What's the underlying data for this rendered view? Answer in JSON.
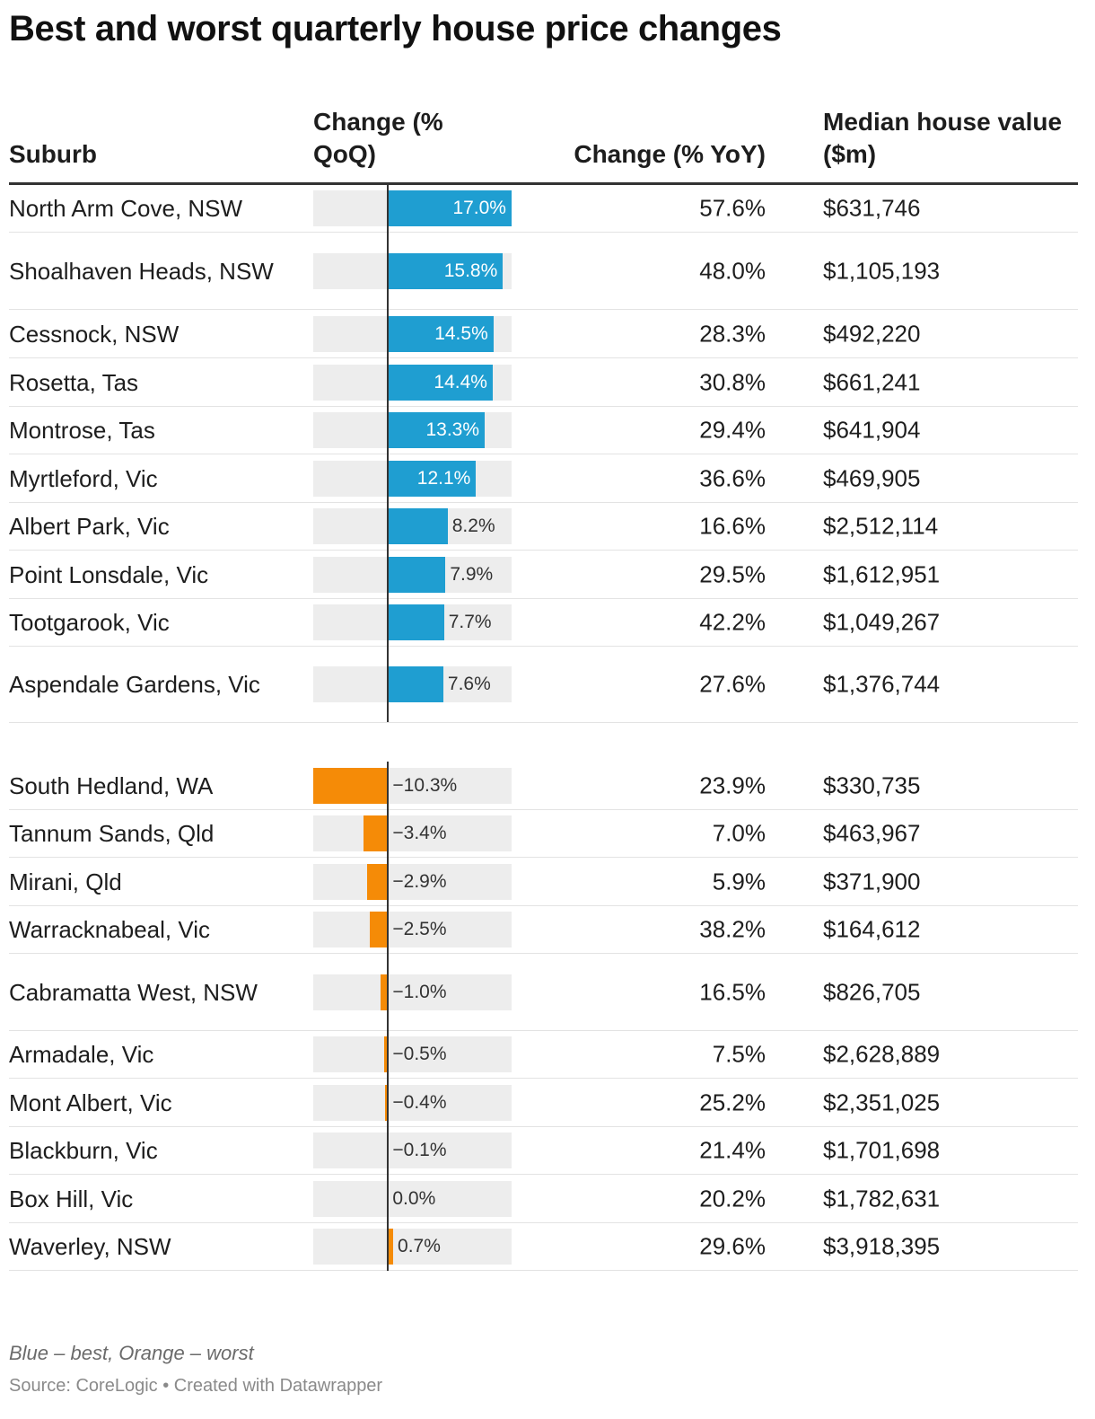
{
  "title": "Best and worst quarterly house price changes",
  "headers": {
    "suburb": "Suburb",
    "qoq": "Change (% QoQ)",
    "yoy": "Change (% YoY)",
    "median": "Median house value ($m)"
  },
  "colors": {
    "best": "#1f9ed1",
    "worst": "#f58b07",
    "track": "#ededed"
  },
  "chart_data": {
    "type": "table",
    "title": "Best and worst quarterly house price changes",
    "bar_column": "Change (% QoQ)",
    "bar_domain": [
      -10.3,
      17.0
    ],
    "groups": [
      {
        "name": "best",
        "rows": [
          {
            "suburb": "North Arm Cove, NSW",
            "qoq": 17.0,
            "qoq_label": "17.0%",
            "yoy": "57.6%",
            "median": "$631,746"
          },
          {
            "suburb": "Shoalhaven Heads, NSW",
            "qoq": 15.8,
            "qoq_label": "15.8%",
            "yoy": "48.0%",
            "median": "$1,105,193"
          },
          {
            "suburb": "Cessnock, NSW",
            "qoq": 14.5,
            "qoq_label": "14.5%",
            "yoy": "28.3%",
            "median": "$492,220"
          },
          {
            "suburb": "Rosetta, Tas",
            "qoq": 14.4,
            "qoq_label": "14.4%",
            "yoy": "30.8%",
            "median": "$661,241"
          },
          {
            "suburb": "Montrose, Tas",
            "qoq": 13.3,
            "qoq_label": "13.3%",
            "yoy": "29.4%",
            "median": "$641,904"
          },
          {
            "suburb": "Myrtleford, Vic",
            "qoq": 12.1,
            "qoq_label": "12.1%",
            "yoy": "36.6%",
            "median": "$469,905"
          },
          {
            "suburb": "Albert Park, Vic",
            "qoq": 8.2,
            "qoq_label": "8.2%",
            "yoy": "16.6%",
            "median": "$2,512,114"
          },
          {
            "suburb": "Point Lonsdale, Vic",
            "qoq": 7.9,
            "qoq_label": "7.9%",
            "yoy": "29.5%",
            "median": "$1,612,951"
          },
          {
            "suburb": "Tootgarook, Vic",
            "qoq": 7.7,
            "qoq_label": "7.7%",
            "yoy": "42.2%",
            "median": "$1,049,267"
          },
          {
            "suburb": "Aspendale Gardens, Vic",
            "qoq": 7.6,
            "qoq_label": "7.6%",
            "yoy": "27.6%",
            "median": "$1,376,744"
          }
        ]
      },
      {
        "name": "worst",
        "rows": [
          {
            "suburb": "South Hedland, WA",
            "qoq": -10.3,
            "qoq_label": "−10.3%",
            "yoy": "23.9%",
            "median": "$330,735"
          },
          {
            "suburb": "Tannum Sands, Qld",
            "qoq": -3.4,
            "qoq_label": "−3.4%",
            "yoy": "7.0%",
            "median": "$463,967"
          },
          {
            "suburb": "Mirani, Qld",
            "qoq": -2.9,
            "qoq_label": "−2.9%",
            "yoy": "5.9%",
            "median": "$371,900"
          },
          {
            "suburb": "Warracknabeal, Vic",
            "qoq": -2.5,
            "qoq_label": "−2.5%",
            "yoy": "38.2%",
            "median": "$164,612"
          },
          {
            "suburb": "Cabramatta West, NSW",
            "qoq": -1.0,
            "qoq_label": "−1.0%",
            "yoy": "16.5%",
            "median": "$826,705"
          },
          {
            "suburb": "Armadale, Vic",
            "qoq": -0.5,
            "qoq_label": "−0.5%",
            "yoy": "7.5%",
            "median": "$2,628,889"
          },
          {
            "suburb": "Mont Albert, Vic",
            "qoq": -0.4,
            "qoq_label": "−0.4%",
            "yoy": "25.2%",
            "median": "$2,351,025"
          },
          {
            "suburb": "Blackburn, Vic",
            "qoq": -0.1,
            "qoq_label": "−0.1%",
            "yoy": "21.4%",
            "median": "$1,701,698"
          },
          {
            "suburb": "Box Hill, Vic",
            "qoq": 0.0,
            "qoq_label": "0.0%",
            "yoy": "20.2%",
            "median": "$1,782,631"
          },
          {
            "suburb": "Waverley, NSW",
            "qoq": 0.7,
            "qoq_label": "0.7%",
            "yoy": "29.6%",
            "median": "$3,918,395"
          }
        ]
      }
    ]
  },
  "footer": {
    "note": "Blue – best, Orange – worst",
    "source": "Source: CoreLogic • Created with Datawrapper"
  }
}
